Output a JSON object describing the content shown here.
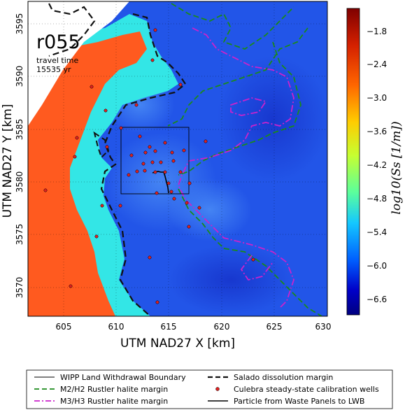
{
  "map": {
    "run_id": "r055",
    "travel_time_label": "travel time",
    "travel_time_value": "15535 yr",
    "xlabel": "UTM NAD27 X [km]",
    "ylabel": "UTM NAD27 Y [km]",
    "xticks": [
      "605",
      "610",
      "615",
      "620",
      "625",
      "630"
    ],
    "yticks": [
      "3570",
      "3575",
      "3580",
      "3585",
      "3590",
      "3595"
    ]
  },
  "colorbar": {
    "label": "log10(Ss [1/m])",
    "ticks": [
      "−1.8",
      "−2.4",
      "−3.0",
      "−3.6",
      "−4.2",
      "−4.8",
      "−5.4",
      "−6.0",
      "−6.6"
    ],
    "colors": [
      "#7f0000",
      "#d42000",
      "#ff6600",
      "#ffcc00",
      "#c6ff31",
      "#5bff9c",
      "#14c8ff",
      "#0060ff",
      "#0000c8",
      "#00007f"
    ]
  },
  "legend": {
    "items": [
      {
        "label": "WIPP Land Withdrawal Boundary",
        "style": "thin solid black line"
      },
      {
        "label": "Salado dissolution margin",
        "style": "thick dashed black line"
      },
      {
        "label": "M2/H2 Rustler halite margin",
        "style": "dashed green line"
      },
      {
        "label": "Culebra steady-state calibration wells",
        "style": "red dot"
      },
      {
        "label": "M3/H3 Rustler halite margin",
        "style": "dash-dot magenta line"
      },
      {
        "label": "Particle from Waste Panels to LWB",
        "style": "solid black line"
      }
    ]
  },
  "colors": {
    "background_field": "#2255e8",
    "high_storativity": "#ff5a1f",
    "mid_storativity": "#33e6e6",
    "no_data": "#ffffff",
    "m2_margin": "#1a8a1a",
    "m3_margin": "#cc22cc",
    "wells": "#e02020"
  }
}
